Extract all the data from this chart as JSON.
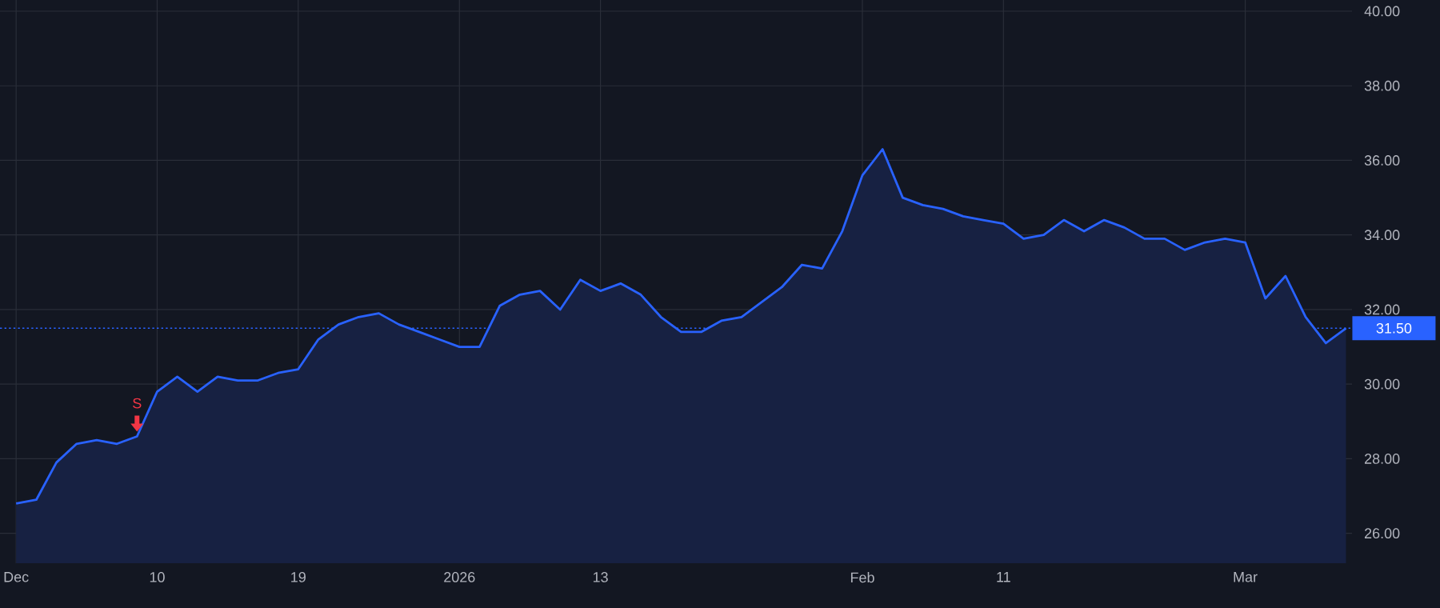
{
  "chart_data": {
    "type": "area",
    "categories": [
      "Dec",
      null,
      null,
      null,
      null,
      null,
      null,
      "10",
      null,
      null,
      null,
      null,
      null,
      null,
      "19",
      null,
      null,
      null,
      null,
      null,
      null,
      null,
      "2026",
      null,
      null,
      null,
      null,
      null,
      null,
      "13",
      null,
      null,
      null,
      null,
      null,
      null,
      null,
      null,
      null,
      null,
      null,
      null,
      "Feb",
      null,
      null,
      null,
      null,
      null,
      null,
      "11",
      null,
      null,
      null,
      null,
      null,
      null,
      null,
      null,
      null,
      null,
      null,
      "Mar",
      null,
      null,
      null,
      null,
      null
    ],
    "series": [
      {
        "color": "#2962ff",
        "values": [
          26.8,
          26.9,
          27.9,
          28.4,
          28.5,
          28.4,
          28.6,
          29.8,
          30.2,
          29.8,
          30.2,
          30.1,
          30.1,
          30.3,
          30.4,
          31.2,
          31.6,
          31.8,
          31.9,
          31.6,
          31.4,
          31.2,
          31.0,
          31.0,
          32.1,
          32.4,
          32.5,
          32.0,
          32.8,
          32.5,
          32.7,
          32.4,
          31.8,
          31.4,
          31.4,
          31.7,
          31.8,
          32.2,
          32.6,
          33.2,
          33.1,
          34.1,
          35.6,
          36.3,
          35.0,
          34.8,
          34.7,
          34.5,
          34.4,
          34.3,
          33.9,
          34.0,
          34.4,
          34.1,
          34.4,
          34.2,
          33.9,
          33.9,
          33.6,
          33.8,
          33.9,
          33.8,
          32.3,
          32.9,
          31.8,
          31.1,
          31.5
        ]
      }
    ],
    "ylim": [
      25.2,
      40.3
    ],
    "yticks": [
      {
        "value": 26,
        "label": "26.00"
      },
      {
        "value": 28,
        "label": "28.00"
      },
      {
        "value": 30,
        "label": "30.00"
      },
      {
        "value": 32,
        "label": "32.00"
      },
      {
        "value": 34,
        "label": "34.00"
      },
      {
        "value": 36,
        "label": "36.00"
      },
      {
        "value": 38,
        "label": "38.00"
      },
      {
        "value": 40,
        "label": "40.00"
      }
    ],
    "grid": true,
    "ref_lines": [
      {
        "axis": "y",
        "value": 31.5,
        "label": "31.50",
        "color": "#2962ff",
        "line_style": "dotted"
      }
    ],
    "annotations": [
      {
        "text": "S",
        "y": 28.6
      }
    ]
  }
}
